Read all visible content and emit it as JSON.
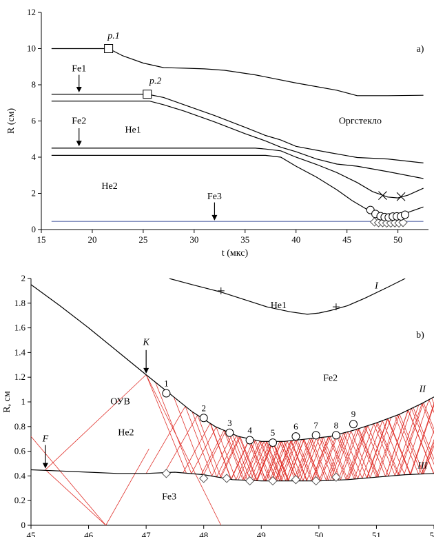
{
  "colors": {
    "curve": "#000000",
    "fe3_line": "#5a6aa8",
    "char": "#e0302a"
  },
  "chart_data": [
    {
      "type": "line",
      "id": "a",
      "panel_label": "a)",
      "xlabel": "t (мкс)",
      "ylabel": "R (см)",
      "xlim": [
        15,
        53
      ],
      "ylim": [
        0,
        12
      ],
      "xticks": [
        "15",
        "20",
        "25",
        "30",
        "35",
        "40",
        "45",
        "50"
      ],
      "yticks": [
        "0",
        "2",
        "4",
        "6",
        "8",
        "10",
        "12"
      ],
      "grid": false,
      "series": [
        {
          "points": [
            [
              16,
              10
            ],
            [
              21.6,
              10
            ],
            [
              23,
              9.6
            ],
            [
              25,
              9.2
            ],
            [
              27,
              8.95
            ],
            [
              29,
              8.92
            ],
            [
              31,
              8.88
            ],
            [
              33,
              8.8
            ],
            [
              36,
              8.55
            ],
            [
              40,
              8.1
            ],
            [
              44,
              7.7
            ],
            [
              46,
              7.4
            ],
            [
              49,
              7.4
            ],
            [
              52.5,
              7.42
            ]
          ]
        },
        {
          "points": [
            [
              16,
              7.48
            ],
            [
              25.4,
              7.48
            ],
            [
              27,
              7.3
            ],
            [
              29,
              6.9
            ],
            [
              32,
              6.3
            ],
            [
              35,
              5.65
            ],
            [
              37,
              5.2
            ],
            [
              38.5,
              4.95
            ],
            [
              40,
              4.6
            ],
            [
              43,
              4.28
            ],
            [
              46,
              3.98
            ],
            [
              49,
              3.9
            ],
            [
              52.5,
              3.68
            ]
          ]
        },
        {
          "points": [
            [
              16,
              7.1
            ],
            [
              25.6,
              7.1
            ],
            [
              27,
              6.9
            ],
            [
              29,
              6.55
            ],
            [
              32,
              5.95
            ],
            [
              35,
              5.3
            ],
            [
              37,
              4.9
            ],
            [
              38.5,
              4.55
            ],
            [
              40,
              4.3
            ],
            [
              42,
              3.9
            ],
            [
              44,
              3.62
            ],
            [
              46,
              3.5
            ],
            [
              49,
              3.2
            ],
            [
              52.5,
              2.82
            ]
          ]
        },
        {
          "points": [
            [
              16,
              4.5
            ],
            [
              36,
              4.5
            ],
            [
              37,
              4.45
            ],
            [
              38.5,
              4.35
            ],
            [
              40,
              4.0
            ],
            [
              42,
              3.6
            ],
            [
              44,
              3.15
            ],
            [
              46,
              2.6
            ],
            [
              47.5,
              2.1
            ],
            [
              49,
              1.8
            ],
            [
              50,
              1.75
            ],
            [
              51,
              1.9
            ],
            [
              52.5,
              2.28
            ]
          ]
        },
        {
          "points": [
            [
              16,
              4.1
            ],
            [
              37,
              4.1
            ],
            [
              38.5,
              4.0
            ],
            [
              40,
              3.5
            ],
            [
              42,
              2.9
            ],
            [
              44,
              2.2
            ],
            [
              45.5,
              1.6
            ],
            [
              47,
              1.1
            ],
            [
              48.5,
              0.75
            ],
            [
              49.5,
              0.7
            ],
            [
              50.5,
              0.85
            ],
            [
              52.5,
              1.25
            ]
          ]
        },
        {
          "points": [
            [
              16,
              0.45
            ],
            [
              52.5,
              0.45
            ]
          ],
          "color": "#5a6aa8"
        }
      ],
      "markers": {
        "squares": [
          [
            21.6,
            10
          ],
          [
            25.4,
            7.48
          ]
        ],
        "crosses": [
          [
            48.5,
            1.88
          ],
          [
            50.3,
            1.82
          ]
        ],
        "circles": [
          [
            47.3,
            1.08
          ],
          [
            47.8,
            0.86
          ],
          [
            48.3,
            0.74
          ],
          [
            48.7,
            0.69
          ],
          [
            49.1,
            0.67
          ],
          [
            49.5,
            0.72
          ],
          [
            49.9,
            0.73
          ],
          [
            50.3,
            0.73
          ],
          [
            50.7,
            0.82
          ]
        ],
        "diamonds": [
          [
            47.7,
            0.42
          ],
          [
            48.1,
            0.38
          ],
          [
            48.5,
            0.38
          ],
          [
            48.9,
            0.36
          ],
          [
            49.3,
            0.36
          ],
          [
            49.7,
            0.37
          ],
          [
            50.1,
            0.36
          ],
          [
            50.5,
            0.39
          ]
        ]
      },
      "annotations": [
        {
          "text": "p.1",
          "x": 22.1,
          "y": 10.55,
          "italic": true
        },
        {
          "text": "p.2",
          "x": 26.2,
          "y": 8.05,
          "italic": true
        },
        {
          "text": "Fe1",
          "x": 18.7,
          "y": 8.75
        },
        {
          "text": "Fe2",
          "x": 18.7,
          "y": 5.85
        },
        {
          "text": "He1",
          "x": 24.0,
          "y": 5.35
        },
        {
          "text": "He2",
          "x": 21.7,
          "y": 2.25
        },
        {
          "text": "Fe3",
          "x": 32.0,
          "y": 1.68
        },
        {
          "text": "Оргстекло",
          "x": 46.3,
          "y": 5.85
        }
      ],
      "arrows": [
        {
          "x": 18.7,
          "from": 8.55,
          "to": 7.58
        },
        {
          "x": 18.7,
          "from": 5.6,
          "to": 4.6
        },
        {
          "x": 32.0,
          "from": 1.5,
          "to": 0.5
        }
      ]
    },
    {
      "type": "line",
      "id": "b",
      "panel_label": "b)",
      "xlabel": "t, мкс",
      "ylabel": "R, см",
      "xlim": [
        45,
        52
      ],
      "ylim": [
        0,
        2
      ],
      "xticks": [
        "45",
        "46",
        "47",
        "48",
        "49",
        "50",
        "51",
        "52"
      ],
      "yticks": [
        "0",
        "0.2",
        "0.4",
        "0.6",
        "0.8",
        "1",
        "1.2",
        "1.4",
        "1.6",
        "1.8",
        "2"
      ],
      "grid": false,
      "series": [
        {
          "points": [
            [
              45,
              1.95
            ],
            [
              45.5,
              1.78
            ],
            [
              46,
              1.6
            ],
            [
              46.5,
              1.41
            ],
            [
              47,
              1.22
            ],
            [
              47.4,
              1.07
            ],
            [
              47.8,
              0.92
            ],
            [
              48.2,
              0.8
            ],
            [
              48.6,
              0.72
            ],
            [
              49,
              0.68
            ],
            [
              49.4,
              0.68
            ],
            [
              49.8,
              0.7
            ],
            [
              50.2,
              0.72
            ],
            [
              50.6,
              0.77
            ],
            [
              51,
              0.83
            ],
            [
              51.4,
              0.9
            ],
            [
              51.8,
              0.99
            ],
            [
              52,
              1.04
            ]
          ]
        },
        {
          "points": [
            [
              47.4,
              2.0
            ],
            [
              47.8,
              1.95
            ],
            [
              48.3,
              1.89
            ],
            [
              48.7,
              1.83
            ],
            [
              49.1,
              1.77
            ],
            [
              49.5,
              1.73
            ],
            [
              49.8,
              1.71
            ],
            [
              50.0,
              1.72
            ],
            [
              50.2,
              1.74
            ],
            [
              50.5,
              1.78
            ],
            [
              50.8,
              1.84
            ],
            [
              51.2,
              1.93
            ],
            [
              51.5,
              2.0
            ]
          ]
        },
        {
          "points": [
            [
              45,
              0.45
            ],
            [
              45.5,
              0.44
            ],
            [
              46,
              0.43
            ],
            [
              46.5,
              0.42
            ],
            [
              47,
              0.42
            ],
            [
              47.5,
              0.43
            ],
            [
              48,
              0.41
            ],
            [
              48.5,
              0.37
            ],
            [
              49,
              0.36
            ],
            [
              49.5,
              0.36
            ],
            [
              50,
              0.36
            ],
            [
              50.5,
              0.37
            ],
            [
              51,
              0.39
            ],
            [
              51.5,
              0.41
            ],
            [
              52,
              0.42
            ]
          ]
        }
      ],
      "markers": {
        "circles": [
          [
            47.35,
            1.07
          ],
          [
            48.0,
            0.87
          ],
          [
            48.45,
            0.75
          ],
          [
            48.8,
            0.69
          ],
          [
            49.2,
            0.67
          ],
          [
            49.6,
            0.72
          ],
          [
            49.95,
            0.73
          ],
          [
            50.3,
            0.73
          ],
          [
            50.6,
            0.82
          ]
        ],
        "circle_labels": [
          "1",
          "2",
          "3",
          "4",
          "5",
          "6",
          "7",
          "8",
          "9"
        ],
        "diamonds": [
          [
            47.35,
            0.42
          ],
          [
            48.0,
            0.38
          ],
          [
            48.4,
            0.38
          ],
          [
            48.8,
            0.36
          ],
          [
            49.2,
            0.36
          ],
          [
            49.6,
            0.37
          ],
          [
            49.95,
            0.36
          ],
          [
            50.3,
            0.39
          ]
        ],
        "plus": [
          [
            48.3,
            1.9
          ],
          [
            50.3,
            1.77
          ]
        ]
      },
      "annotations": [
        {
          "text": "He1",
          "x": 49.3,
          "y": 1.76
        },
        {
          "text": "Fe2",
          "x": 50.2,
          "y": 1.17
        },
        {
          "text": "ОУВ",
          "x": 46.55,
          "y": 0.98
        },
        {
          "text": "He2",
          "x": 46.65,
          "y": 0.73
        },
        {
          "text": "Fe3",
          "x": 47.4,
          "y": 0.21
        },
        {
          "text": "I",
          "x": 51.0,
          "y": 1.92,
          "italic": true
        },
        {
          "text": "II",
          "x": 51.8,
          "y": 1.08,
          "italic": true
        },
        {
          "text": "III",
          "x": 51.8,
          "y": 0.46,
          "italic": true
        },
        {
          "text": "K",
          "x": 47.0,
          "y": 1.46,
          "italic": true
        },
        {
          "text": "F",
          "x": 45.25,
          "y": 0.68,
          "italic": true
        }
      ],
      "arrows": [
        {
          "x": 47.0,
          "from": 1.42,
          "to": 1.23
        },
        {
          "x": 45.25,
          "from": 0.65,
          "to": 0.46
        }
      ],
      "characteristics": "red wave characteristic lines reflecting between boundaries II and III"
    }
  ]
}
